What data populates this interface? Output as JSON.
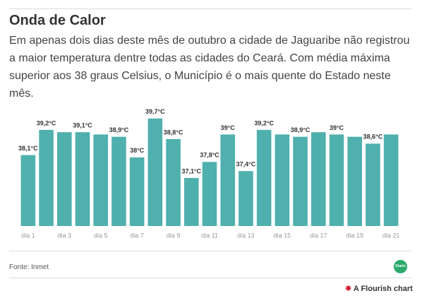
{
  "header": {
    "title": "Onda de Calor",
    "subtitle": "Em apenas dois dias deste mês de outubro a cidade de Jaguaribe não registrou a maior temperatura dentre todas as cidades do Ceará. Com média máxima superior aos 38 graus Celsius, o Município é o mais quente do Estado neste mês."
  },
  "chart_data": {
    "type": "bar",
    "color": "#4fb0ae",
    "categories": [
      "dia 1",
      null,
      "dia 3",
      null,
      "dia 5",
      null,
      "dia 7",
      null,
      "dia 9",
      null,
      "dia 11",
      null,
      "dia 13",
      null,
      "dia 15",
      null,
      "dia 17",
      null,
      "dia 19",
      null,
      "dia 21"
    ],
    "values": [
      38.1,
      39.2,
      39.1,
      39.1,
      39.0,
      38.9,
      38.0,
      39.7,
      38.8,
      37.1,
      37.8,
      39.0,
      37.4,
      39.2,
      39.0,
      38.9,
      39.1,
      39.0,
      38.9,
      38.6,
      39.0
    ],
    "value_labels": [
      "38,1°C",
      "39,2°C",
      null,
      "39,1°C",
      null,
      "38,9°C",
      "38°C",
      "39,7°C",
      "38,8°C",
      "37,1°C",
      "37,8°C",
      "39°C",
      "37,4°C",
      "39,2°C",
      null,
      "38,9°C",
      null,
      "39°C",
      null,
      "38,6°C",
      null
    ],
    "ylim": [
      35,
      40
    ]
  },
  "footer": {
    "source": "Fonte: Inmet",
    "logo": "Diario",
    "credit": "A Flourish chart"
  }
}
